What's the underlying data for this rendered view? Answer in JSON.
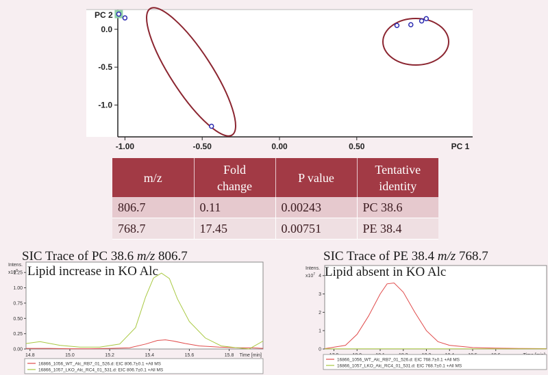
{
  "chart_data": [
    {
      "type": "scatter",
      "xlabel": "PC 1",
      "ylabel": "PC 2",
      "xlim": [
        -1.25,
        1.25
      ],
      "ylim": [
        -1.42,
        0.26
      ],
      "xticks": [
        "-1.00",
        "-0.50",
        "0.00",
        "0.50"
      ],
      "yticks": [
        "0.0",
        "-0.5",
        "-1.0"
      ],
      "xtick_values": [
        -1.0,
        -0.5,
        0.0,
        0.5
      ],
      "ytick_values": [
        0.0,
        -0.5,
        -1.0
      ],
      "groups": [
        {
          "color": "#8b2530",
          "points": [
            [
              -1.0,
              0.15
            ],
            [
              -1.04,
              0.2
            ],
            [
              -0.44,
              -1.28
            ]
          ]
        },
        {
          "color": "#8b2530",
          "points": [
            [
              0.76,
              0.05
            ],
            [
              0.85,
              0.06
            ],
            [
              0.92,
              0.11
            ],
            [
              0.95,
              0.14
            ]
          ]
        }
      ],
      "highlighted_point": [
        -1.04,
        0.2
      ],
      "grid": false
    },
    {
      "type": "line",
      "title": "SIC Trace of PC 38.6 ",
      "title_mz": "m/z",
      "title_value": " 806.7",
      "subtitle": "Lipid increase in KO Alc",
      "ylabel": "Intens.",
      "yexp": "x10",
      "yexp_power": "8",
      "xlabel": "Time [min]",
      "xlim": [
        14.78,
        15.97
      ],
      "ylim": [
        0,
        1.42
      ],
      "xticks": [
        "14.8",
        "15.0",
        "15.2",
        "15.4",
        "15.6",
        "15.8"
      ],
      "xtick_values": [
        14.8,
        15.0,
        15.2,
        15.4,
        15.6,
        15.8
      ],
      "yticks": [
        "0.00",
        "0.25",
        "0.50",
        "0.75",
        "1.00",
        "1.25"
      ],
      "ytick_values": [
        0.0,
        0.25,
        0.5,
        0.75,
        1.0,
        1.25
      ],
      "series": [
        {
          "name": "16866_1056_WT_Alc_RB7_01_526.d: EIC 806.7±0.1 +All MS",
          "color": "#e04a4a",
          "x": [
            14.78,
            14.9,
            15.0,
            15.1,
            15.2,
            15.3,
            15.38,
            15.44,
            15.48,
            15.52,
            15.58,
            15.65,
            15.75,
            15.85,
            15.92,
            15.97
          ],
          "y": [
            0.01,
            0.01,
            0.005,
            0.005,
            0.01,
            0.02,
            0.08,
            0.14,
            0.15,
            0.13,
            0.09,
            0.05,
            0.03,
            0.02,
            0.02,
            0.01
          ]
        },
        {
          "name": "16866_1057_LKO_Alc_RC4_01_531.d: EIC 806.7±0.1 +All MS",
          "color": "#a8c840",
          "x": [
            14.78,
            14.85,
            14.95,
            15.05,
            15.15,
            15.25,
            15.33,
            15.38,
            15.42,
            15.46,
            15.5,
            15.54,
            15.6,
            15.68,
            15.76,
            15.84,
            15.9,
            15.97
          ],
          "y": [
            0.09,
            0.12,
            0.06,
            0.03,
            0.03,
            0.08,
            0.35,
            0.85,
            1.16,
            1.24,
            1.15,
            0.82,
            0.45,
            0.18,
            0.05,
            0.02,
            0.0,
            0.13
          ]
        }
      ]
    },
    {
      "type": "line",
      "title": "SIC Trace of PE 38.4 ",
      "title_mz": "m/z",
      "title_value": " 768.7",
      "subtitle": "Lipid absent in KO Alc",
      "ylabel": "Intens.",
      "yexp": "x10",
      "yexp_power": "7",
      "xlabel": "Time [min]",
      "xlim": [
        17.86,
        18.82
      ],
      "ylim": [
        0,
        4.55
      ],
      "xticks": [
        "17.9",
        "18.0",
        "18.1",
        "18.2",
        "18.3",
        "18.4",
        "18.5",
        "18.6"
      ],
      "xtick_values": [
        17.9,
        18.0,
        18.1,
        18.2,
        18.3,
        18.4,
        18.5,
        18.6
      ],
      "yticks": [
        "0",
        "1",
        "2",
        "3",
        "4"
      ],
      "ytick_values": [
        0,
        1,
        2,
        3,
        4
      ],
      "series": [
        {
          "name": "16866_1056_WT_Alc_RB7_01_526.d: EIC 768.7±0.1 +All MS",
          "color": "#e04a4a",
          "x": [
            17.86,
            17.95,
            18.0,
            18.05,
            18.1,
            18.13,
            18.16,
            18.2,
            18.25,
            18.3,
            18.35,
            18.4,
            18.5,
            18.6,
            18.7,
            18.82
          ],
          "y": [
            0.02,
            0.2,
            0.8,
            1.8,
            3.0,
            3.55,
            3.6,
            3.1,
            2.0,
            1.0,
            0.4,
            0.2,
            0.08,
            0.05,
            0.03,
            0.02
          ]
        },
        {
          "name": "16866_1057_LKO_Alc_RC4_01_531.d: EIC 768.7±0.1 +All MS",
          "color": "#a8c840",
          "x": [
            17.86,
            18.82
          ],
          "y": [
            0.01,
            0.01
          ]
        }
      ]
    }
  ],
  "table": {
    "headers": [
      [
        "m/z"
      ],
      [
        "Fold",
        "change"
      ],
      [
        "P value"
      ],
      [
        "Tentative",
        "identity"
      ]
    ],
    "rows": [
      [
        "806.7",
        "0.11",
        "0.00243",
        "PC 38.6"
      ],
      [
        "768.7",
        "17.45",
        "0.00751",
        "PE 38.4"
      ]
    ]
  }
}
